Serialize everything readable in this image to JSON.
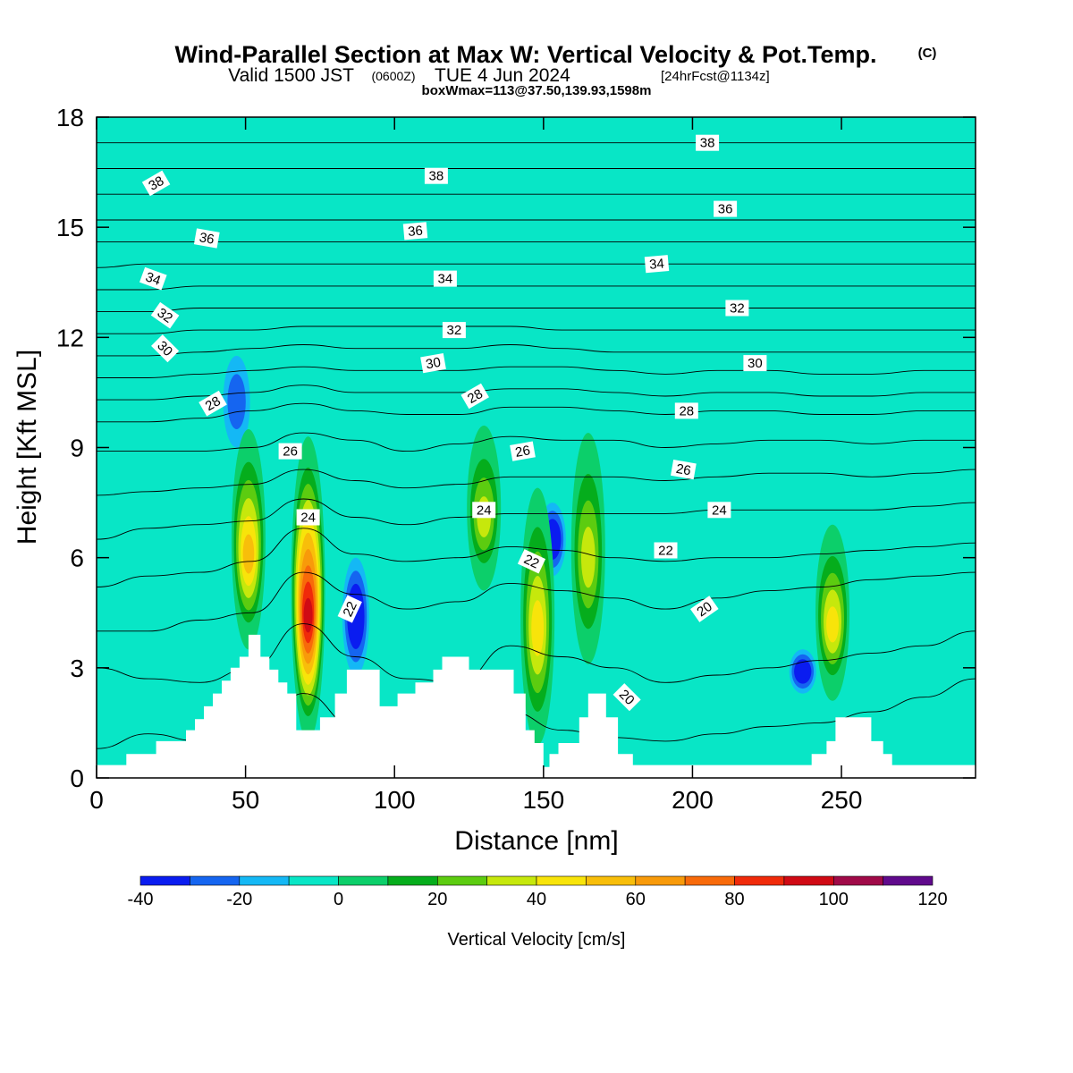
{
  "title": {
    "main": "Wind-Parallel Section at Max W: Vertical Velocity & Pot.Temp.",
    "copyright": "(C)",
    "valid_a": "Valid 1500 JST",
    "valid_b": "(0600Z)",
    "valid_c": "TUE 4 Jun 2024",
    "valid_d": "[24hrFcst@1134z]",
    "boxinfo": "boxWmax=113@37.50,139.93,1598m"
  },
  "chart_data": {
    "type": "heatmap",
    "xlabel": "Distance [nm]",
    "ylabel": "Height [Kft MSL]",
    "xlim": [
      0,
      295
    ],
    "ylim": [
      0,
      18
    ],
    "xticks": [
      0,
      50,
      100,
      150,
      200,
      250
    ],
    "yticks": [
      0,
      3,
      6,
      9,
      12,
      15,
      18
    ],
    "colorbar": {
      "label": "Vertical Velocity [cm/s]",
      "ticks": [
        -40,
        -20,
        0,
        20,
        40,
        60,
        80,
        100,
        120
      ],
      "levels": [
        -40,
        -30,
        -20,
        -10,
        0,
        10,
        20,
        30,
        40,
        50,
        60,
        70,
        80,
        90,
        100,
        110,
        120
      ],
      "colors": [
        "#0a1cf0",
        "#1565f0",
        "#14b8f5",
        "#08e6c6",
        "#0ccf6a",
        "#05ad1c",
        "#5ccc10",
        "#c6e80c",
        "#f8e40a",
        "#f8be0a",
        "#f89a0a",
        "#f86a0a",
        "#f02a0a",
        "#d00a14",
        "#a00a48",
        "#600a8c"
      ]
    },
    "background_color": "#08e6c6",
    "updraft_cores": [
      {
        "x": 51,
        "z_min": 3.9,
        "z_max": 9.1,
        "w_max": 60
      },
      {
        "x": 71,
        "z_min": 1.4,
        "z_max": 8.9,
        "w_max": 100
      },
      {
        "x": 130,
        "z_min": 5.5,
        "z_max": 9.2,
        "w_max": 40
      },
      {
        "x": 148,
        "z_min": 1.3,
        "z_max": 7.5,
        "w_max": 50
      },
      {
        "x": 165,
        "z_min": 3.5,
        "z_max": 9.0,
        "w_max": 40
      },
      {
        "x": 247,
        "z_min": 2.5,
        "z_max": 6.5,
        "w_max": 50
      }
    ],
    "downdraft_cores": [
      {
        "x": 87,
        "z_min": 2.8,
        "z_max": 6.0,
        "w_min": -40
      },
      {
        "x": 237,
        "z_min": 2.3,
        "z_max": 3.5,
        "w_min": -40
      },
      {
        "x": 153,
        "z_min": 5.5,
        "z_max": 7.5,
        "w_min": -40
      },
      {
        "x": 47,
        "z_min": 9.0,
        "z_max": 11.5,
        "w_min": -20
      }
    ],
    "terrain": [
      [
        0,
        0.35
      ],
      [
        10,
        0.35
      ],
      [
        10,
        0.65
      ],
      [
        20,
        0.65
      ],
      [
        20,
        1.0
      ],
      [
        30,
        1.0
      ],
      [
        30,
        1.3
      ],
      [
        33,
        1.3
      ],
      [
        33,
        1.6
      ],
      [
        36,
        1.6
      ],
      [
        36,
        1.95
      ],
      [
        39,
        1.95
      ],
      [
        39,
        2.3
      ],
      [
        42,
        2.3
      ],
      [
        42,
        2.65
      ],
      [
        45,
        2.65
      ],
      [
        45,
        3.0
      ],
      [
        48,
        3.0
      ],
      [
        48,
        3.3
      ],
      [
        51,
        3.3
      ],
      [
        51,
        3.9
      ],
      [
        55,
        3.9
      ],
      [
        55,
        3.3
      ],
      [
        58,
        3.3
      ],
      [
        58,
        2.95
      ],
      [
        61,
        2.95
      ],
      [
        61,
        2.6
      ],
      [
        64,
        2.6
      ],
      [
        64,
        2.3
      ],
      [
        67,
        2.3
      ],
      [
        67,
        1.3
      ],
      [
        75,
        1.3
      ],
      [
        75,
        1.65
      ],
      [
        80,
        1.65
      ],
      [
        80,
        2.3
      ],
      [
        84,
        2.3
      ],
      [
        84,
        2.95
      ],
      [
        95,
        2.95
      ],
      [
        95,
        1.95
      ],
      [
        101,
        1.95
      ],
      [
        101,
        2.3
      ],
      [
        107,
        2.3
      ],
      [
        107,
        2.6
      ],
      [
        113,
        2.6
      ],
      [
        113,
        2.95
      ],
      [
        116,
        2.95
      ],
      [
        116,
        3.3
      ],
      [
        125,
        3.3
      ],
      [
        125,
        2.95
      ],
      [
        140,
        2.95
      ],
      [
        140,
        2.3
      ],
      [
        144,
        2.3
      ],
      [
        144,
        1.3
      ],
      [
        147,
        1.3
      ],
      [
        147,
        0.95
      ],
      [
        150,
        0.95
      ],
      [
        150,
        0.3
      ],
      [
        152,
        0.3
      ],
      [
        152,
        0.65
      ],
      [
        155,
        0.65
      ],
      [
        155,
        0.95
      ],
      [
        162,
        0.95
      ],
      [
        162,
        1.65
      ],
      [
        165,
        1.65
      ],
      [
        165,
        2.3
      ],
      [
        171,
        2.3
      ],
      [
        171,
        1.65
      ],
      [
        175,
        1.65
      ],
      [
        175,
        0.65
      ],
      [
        180,
        0.65
      ],
      [
        180,
        0.35
      ],
      [
        240,
        0.35
      ],
      [
        240,
        0.65
      ],
      [
        245,
        0.65
      ],
      [
        245,
        1.0
      ],
      [
        248,
        1.0
      ],
      [
        248,
        1.65
      ],
      [
        260,
        1.65
      ],
      [
        260,
        1.0
      ],
      [
        264,
        1.0
      ],
      [
        264,
        0.65
      ],
      [
        267,
        0.65
      ],
      [
        267,
        0.35
      ],
      [
        295,
        0.35
      ]
    ],
    "isentropes": [
      {
        "theta": 20,
        "levels": [
          0.8,
          1.2,
          1.0,
          0.9,
          2.3,
          1.4,
          0.9,
          0.9,
          1.8,
          1.3,
          1.1,
          1.0,
          1.2,
          1.4,
          1.5,
          1.8,
          2.2,
          2.7
        ]
      },
      {
        "theta": 21,
        "levels": [
          3.0,
          2.7,
          2.6,
          3.0,
          4.2,
          3.3,
          2.7,
          2.6,
          3.6,
          3.3,
          3.0,
          2.6,
          2.8,
          3.0,
          3.2,
          3.4,
          3.6,
          4.0
        ]
      },
      {
        "theta": 22,
        "levels": [
          4.0,
          4.0,
          4.3,
          4.5,
          5.6,
          5.0,
          4.6,
          4.8,
          5.3,
          5.1,
          4.9,
          4.6,
          4.9,
          5.1,
          5.2,
          5.4,
          5.5,
          5.6
        ]
      },
      {
        "theta": 23,
        "levels": [
          5.2,
          5.5,
          5.6,
          5.9,
          6.8,
          6.1,
          5.9,
          6.0,
          6.3,
          6.2,
          6.0,
          5.9,
          6.0,
          6.0,
          6.1,
          6.2,
          6.3,
          6.4
        ]
      },
      {
        "theta": 24,
        "levels": [
          6.5,
          6.8,
          6.9,
          7.0,
          7.6,
          7.1,
          6.9,
          7.1,
          7.2,
          7.2,
          7.2,
          7.2,
          7.3,
          7.3,
          7.3,
          7.3,
          7.4,
          7.5
        ]
      },
      {
        "theta": 25,
        "levels": [
          7.7,
          7.8,
          7.9,
          8.0,
          8.4,
          8.1,
          7.9,
          8.0,
          8.2,
          8.2,
          8.2,
          8.1,
          8.2,
          8.3,
          8.3,
          8.2,
          8.3,
          8.4
        ]
      },
      {
        "theta": 26,
        "levels": [
          8.9,
          8.9,
          8.9,
          9.0,
          9.4,
          9.2,
          8.9,
          9.1,
          9.3,
          9.2,
          9.2,
          9.0,
          9.1,
          9.2,
          9.2,
          9.1,
          9.2,
          9.2
        ]
      },
      {
        "theta": 27,
        "levels": [
          9.7,
          9.7,
          9.8,
          10.0,
          10.2,
          10.0,
          9.9,
          9.9,
          10.1,
          10.1,
          10.0,
          9.9,
          10.0,
          10.0,
          9.9,
          9.9,
          10.0,
          10.0
        ]
      },
      {
        "theta": 28,
        "levels": [
          10.3,
          10.3,
          10.4,
          10.5,
          10.7,
          10.5,
          10.5,
          10.5,
          10.6,
          10.6,
          10.5,
          10.4,
          10.5,
          10.5,
          10.4,
          10.4,
          10.5,
          10.5
        ]
      },
      {
        "theta": 29,
        "levels": [
          10.9,
          10.9,
          11.0,
          11.1,
          11.2,
          11.1,
          11.1,
          11.1,
          11.2,
          11.2,
          11.1,
          11.0,
          11.1,
          11.1,
          11.0,
          11.0,
          11.1,
          11.1
        ]
      },
      {
        "theta": 30,
        "levels": [
          11.5,
          11.5,
          11.6,
          11.7,
          11.8,
          11.7,
          11.7,
          11.7,
          11.8,
          11.7,
          11.6,
          11.6,
          11.6,
          11.6,
          11.6,
          11.6,
          11.6,
          11.6
        ]
      },
      {
        "theta": 31,
        "levels": [
          12.1,
          12.1,
          12.2,
          12.2,
          12.3,
          12.3,
          12.3,
          12.3,
          12.3,
          12.2,
          12.2,
          12.2,
          12.2,
          12.2,
          12.2,
          12.2,
          12.2,
          12.2
        ]
      },
      {
        "theta": 32,
        "levels": [
          12.7,
          12.7,
          12.8,
          12.8,
          12.8,
          12.8,
          12.8,
          12.8,
          12.8,
          12.8,
          12.8,
          12.8,
          12.8,
          12.8,
          12.8,
          12.8,
          12.8,
          12.8
        ]
      },
      {
        "theta": 33,
        "levels": [
          13.3,
          13.3,
          13.4,
          13.4,
          13.4,
          13.4,
          13.4,
          13.4,
          13.4,
          13.4,
          13.4,
          13.4,
          13.4,
          13.4,
          13.4,
          13.4,
          13.4,
          13.4
        ]
      },
      {
        "theta": 34,
        "levels": [
          13.9,
          14.0,
          14.0,
          14.0,
          14.0,
          14.0,
          14.0,
          14.0,
          14.0,
          14.0,
          14.0,
          14.0,
          14.0,
          14.0,
          14.0,
          14.0,
          14.0,
          14.0
        ]
      },
      {
        "theta": 35,
        "levels": [
          14.6,
          14.6,
          14.6,
          14.6,
          14.6,
          14.6,
          14.6,
          14.6,
          14.6,
          14.6,
          14.6,
          14.6,
          14.6,
          14.6,
          14.6,
          14.6,
          14.6,
          14.6
        ]
      },
      {
        "theta": 36,
        "levels": [
          15.2,
          15.2,
          15.2,
          15.2,
          15.2,
          15.2,
          15.2,
          15.2,
          15.2,
          15.2,
          15.2,
          15.2,
          15.2,
          15.2,
          15.2,
          15.2,
          15.2,
          15.2
        ]
      },
      {
        "theta": 37,
        "levels": [
          15.9,
          15.9,
          15.9,
          15.9,
          15.9,
          15.9,
          15.9,
          15.9,
          15.9,
          15.9,
          15.9,
          15.9,
          15.9,
          15.9,
          15.9,
          15.9,
          15.9,
          15.9
        ]
      },
      {
        "theta": 38,
        "levels": [
          16.6,
          16.6,
          16.6,
          16.6,
          16.6,
          16.6,
          16.6,
          16.6,
          16.6,
          16.6,
          16.6,
          16.6,
          16.6,
          16.6,
          16.6,
          16.6,
          16.6,
          16.6
        ]
      },
      {
        "theta": 39,
        "levels": [
          17.3,
          17.3,
          17.3,
          17.3,
          17.3,
          17.3,
          17.3,
          17.3,
          17.3,
          17.3,
          17.3,
          17.3,
          17.3,
          17.3,
          17.3,
          17.3,
          17.3,
          17.3
        ]
      }
    ],
    "contour_labels": [
      {
        "text": "38",
        "x": 20,
        "y": 16.2,
        "angle": -30
      },
      {
        "text": "38",
        "x": 114,
        "y": 16.4,
        "angle": 0
      },
      {
        "text": "38",
        "x": 205,
        "y": 17.3,
        "angle": 0
      },
      {
        "text": "36",
        "x": 37,
        "y": 14.7,
        "angle": 10
      },
      {
        "text": "36",
        "x": 107,
        "y": 14.9,
        "angle": -5
      },
      {
        "text": "36",
        "x": 211,
        "y": 15.5,
        "angle": 0
      },
      {
        "text": "34",
        "x": 19,
        "y": 13.6,
        "angle": 20
      },
      {
        "text": "34",
        "x": 117,
        "y": 13.6,
        "angle": 0
      },
      {
        "text": "34",
        "x": 188,
        "y": 14.0,
        "angle": -5
      },
      {
        "text": "32",
        "x": 23,
        "y": 12.6,
        "angle": 35
      },
      {
        "text": "32",
        "x": 120,
        "y": 12.2,
        "angle": 0
      },
      {
        "text": "32",
        "x": 215,
        "y": 12.8,
        "angle": 0
      },
      {
        "text": "30",
        "x": 23,
        "y": 11.7,
        "angle": 45
      },
      {
        "text": "30",
        "x": 113,
        "y": 11.3,
        "angle": -10
      },
      {
        "text": "30",
        "x": 221,
        "y": 11.3,
        "angle": 0
      },
      {
        "text": "28",
        "x": 39,
        "y": 10.2,
        "angle": -30
      },
      {
        "text": "28",
        "x": 127,
        "y": 10.4,
        "angle": -30
      },
      {
        "text": "28",
        "x": 198,
        "y": 10.0,
        "angle": 0
      },
      {
        "text": "26",
        "x": 65,
        "y": 8.9,
        "angle": 0
      },
      {
        "text": "26",
        "x": 143,
        "y": 8.9,
        "angle": -10
      },
      {
        "text": "26",
        "x": 197,
        "y": 8.4,
        "angle": 10
      },
      {
        "text": "24",
        "x": 71,
        "y": 7.1,
        "angle": 0
      },
      {
        "text": "24",
        "x": 130,
        "y": 7.3,
        "angle": 0
      },
      {
        "text": "24",
        "x": 209,
        "y": 7.3,
        "angle": 0
      },
      {
        "text": "22",
        "x": 85,
        "y": 4.6,
        "angle": -65
      },
      {
        "text": "22",
        "x": 146,
        "y": 5.9,
        "angle": 25
      },
      {
        "text": "22",
        "x": 191,
        "y": 6.2,
        "angle": 0
      },
      {
        "text": "20",
        "x": 178,
        "y": 2.2,
        "angle": 45
      },
      {
        "text": "20",
        "x": 204,
        "y": 4.6,
        "angle": -35
      }
    ]
  }
}
